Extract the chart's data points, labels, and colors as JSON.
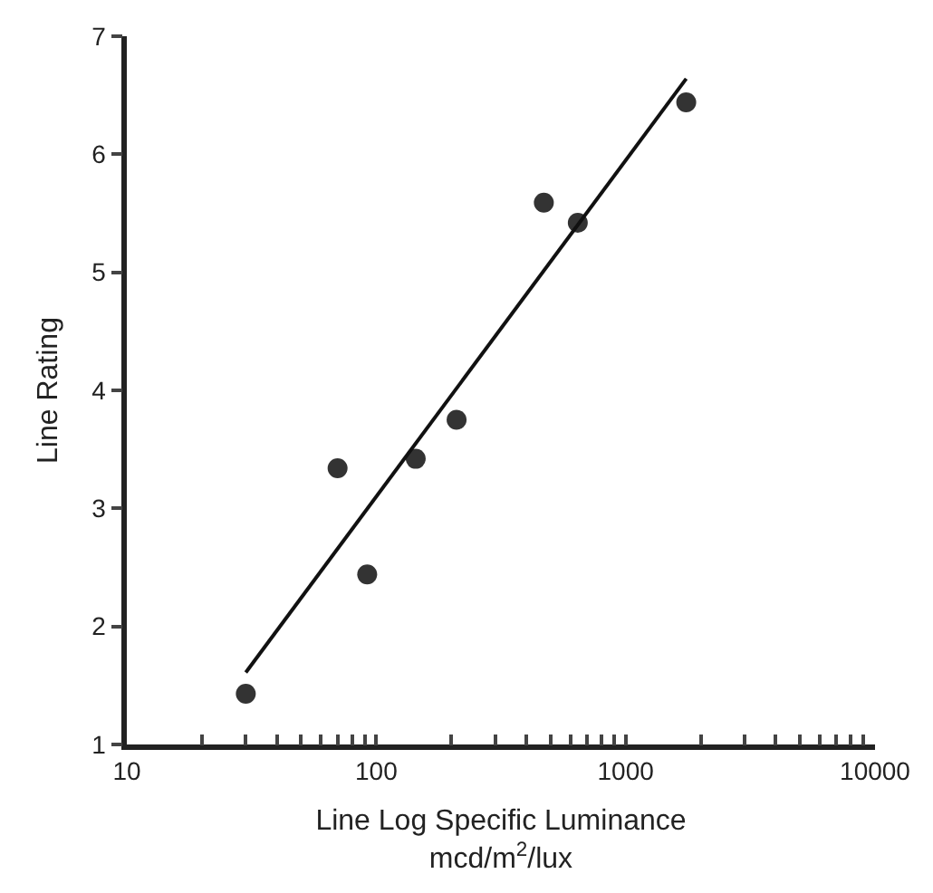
{
  "chart_data": {
    "type": "scatter",
    "xlabel": "Line Log Specific Luminance\nmcd/m$^{2}$/lux",
    "ylabel": "Line Rating",
    "log": "x",
    "grid": false,
    "marker": "circle",
    "xlim": [
      10,
      10000
    ],
    "ylim": [
      1,
      7
    ],
    "yticks": [
      1,
      2,
      3,
      4,
      5,
      6,
      7
    ],
    "xticks": [
      10,
      {
        "value": 20,
        "label": null
      },
      {
        "value": 30,
        "label": null
      },
      {
        "value": 40,
        "label": null
      },
      {
        "value": 50,
        "label": null
      },
      {
        "value": 60,
        "label": null
      },
      {
        "value": 70,
        "label": null
      },
      {
        "value": 80,
        "label": null
      },
      {
        "value": 90,
        "label": null
      },
      100,
      {
        "value": 200,
        "label": null
      },
      {
        "value": 300,
        "label": null
      },
      {
        "value": 400,
        "label": null
      },
      {
        "value": 500,
        "label": null
      },
      {
        "value": 600,
        "label": null
      },
      {
        "value": 700,
        "label": null
      },
      {
        "value": 800,
        "label": null
      },
      {
        "value": 900,
        "label": null
      },
      1000,
      {
        "value": 2000,
        "label": null
      },
      {
        "value": 3000,
        "label": null
      },
      {
        "value": 4000,
        "label": null
      },
      {
        "value": 5000,
        "label": null
      },
      {
        "value": 6000,
        "label": null
      },
      {
        "value": 7000,
        "label": null
      },
      {
        "value": 8000,
        "label": null
      },
      {
        "value": 9000,
        "label": null
      },
      10000
    ],
    "series": [
      {
        "color": "#333333",
        "x": [
          30,
          70,
          92,
          144,
          210,
          470,
          643,
          1750
        ],
        "values": [
          1.43,
          3.34,
          2.44,
          3.42,
          3.75,
          5.59,
          5.42,
          6.44
        ]
      },
      {
        "type": "line",
        "color": "#111111",
        "marker": "none",
        "x": [
          30,
          1750
        ],
        "values": [
          1.61,
          6.64
        ]
      }
    ]
  }
}
